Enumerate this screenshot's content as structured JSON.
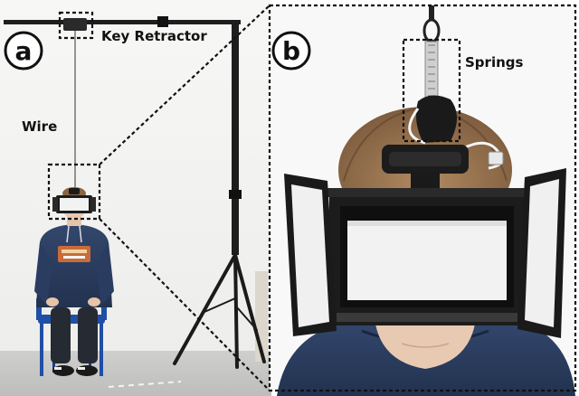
{
  "panels": {
    "a": {
      "badge": "a",
      "labels": {
        "key_retractor": "Key Retractor",
        "wire": "Wire"
      }
    },
    "b": {
      "badge": "b",
      "labels": {
        "springs": "Springs"
      }
    }
  },
  "colors": {
    "label_text": "#111111",
    "dashed_box": "#111111",
    "hoodie": "#2b3e63",
    "chair": "#1f4fa6",
    "hair": "#9a7450",
    "skin": "#e8c9b2",
    "headset": "#1c1c1c",
    "screen": "#f2f2f2",
    "wall": "#f3f3f1",
    "floor": "#c9c9c7"
  }
}
